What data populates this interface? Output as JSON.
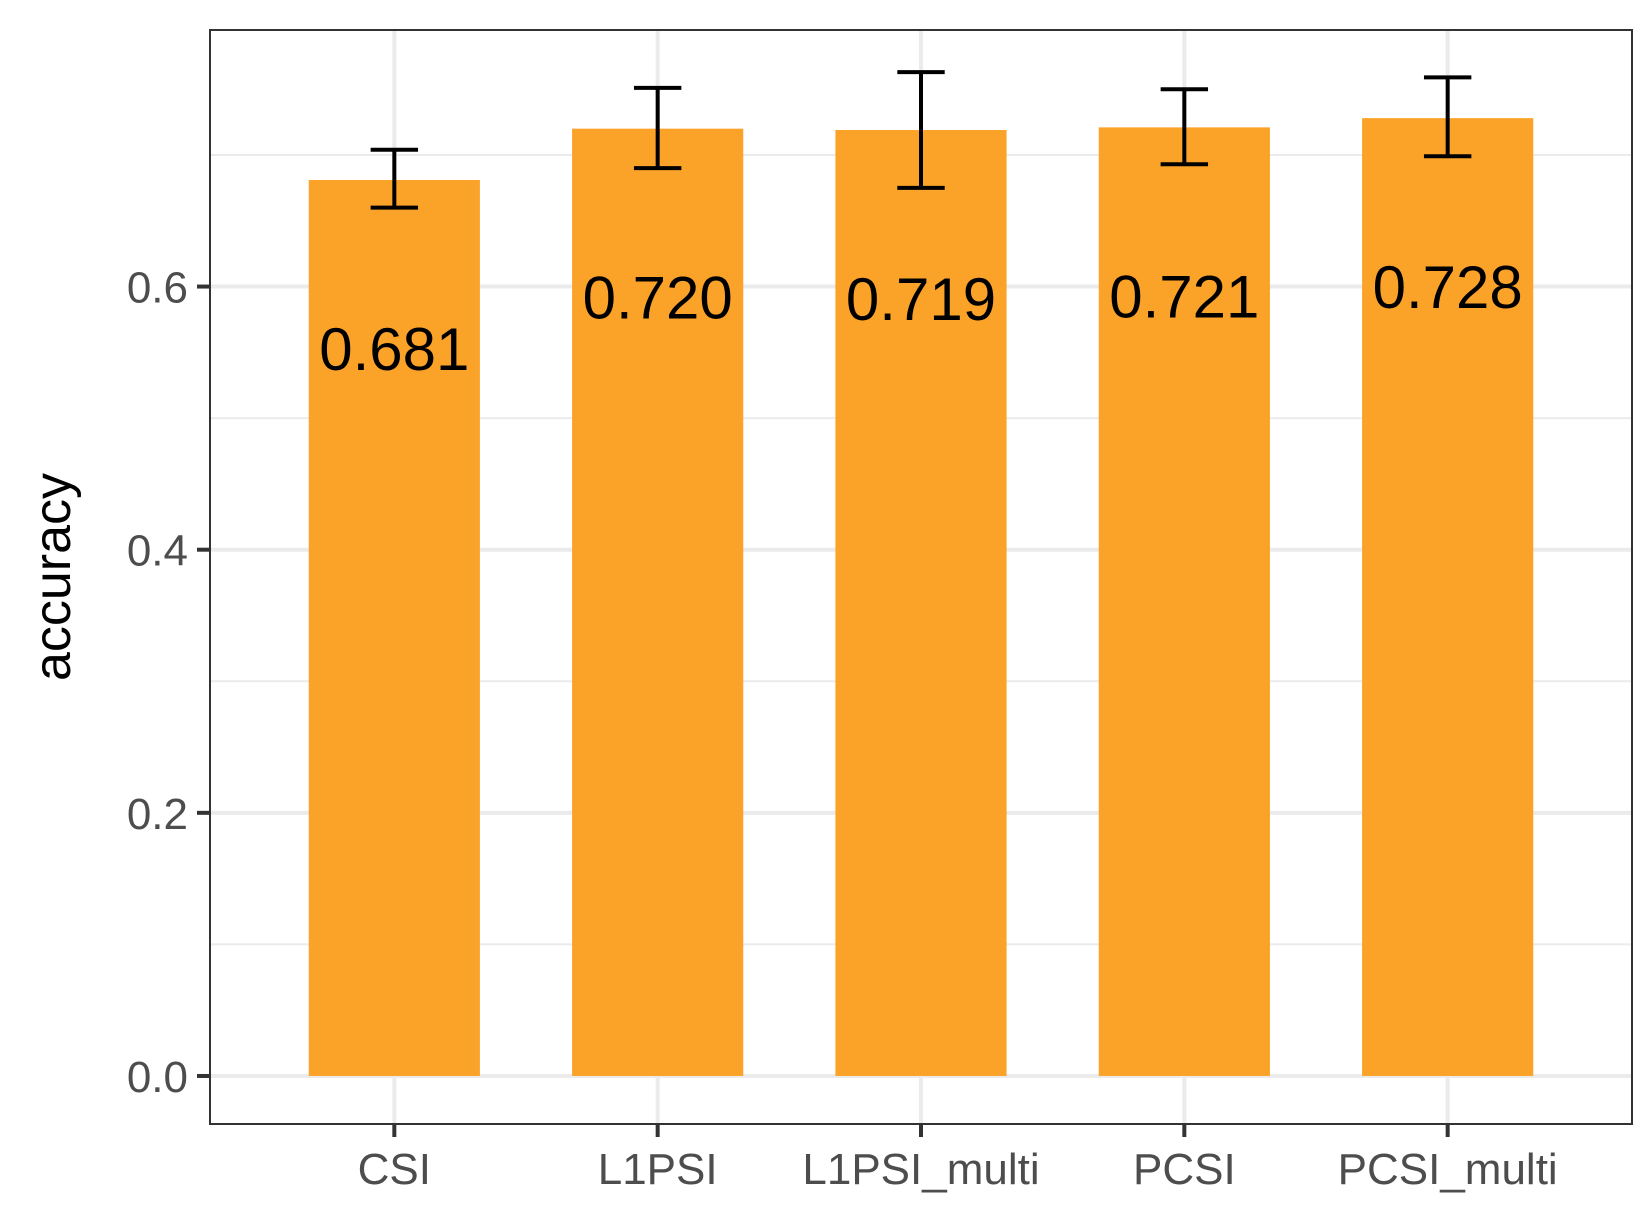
{
  "chart_data": {
    "type": "bar",
    "title": "",
    "xlabel": "",
    "ylabel": "accuracy",
    "ylim": [
      -0.0365,
      0.795
    ],
    "yticks": [
      0.0,
      0.2,
      0.4,
      0.6
    ],
    "ytick_labels": [
      "0.0",
      "0.2",
      "0.4",
      "0.6"
    ],
    "grid": true,
    "legend": "none",
    "categories": [
      "CSI",
      "L1PSI",
      "L1PSI_multi",
      "PCSI",
      "PCSI_multi"
    ],
    "values": [
      0.681,
      0.72,
      0.719,
      0.721,
      0.728
    ],
    "value_labels": [
      "0.681",
      "0.720",
      "0.719",
      "0.721",
      "0.728"
    ],
    "error_bars": [
      {
        "low": 0.66,
        "high": 0.704
      },
      {
        "low": 0.69,
        "high": 0.751
      },
      {
        "low": 0.675,
        "high": 0.763
      },
      {
        "low": 0.693,
        "high": 0.75
      },
      {
        "low": 0.699,
        "high": 0.759
      }
    ],
    "colors": {
      "bar": "#FBA229",
      "error_bar": "#000000",
      "grid": "#EBEBEB",
      "panel_border": "#333333",
      "tick_text": "#4D4D4D"
    }
  }
}
